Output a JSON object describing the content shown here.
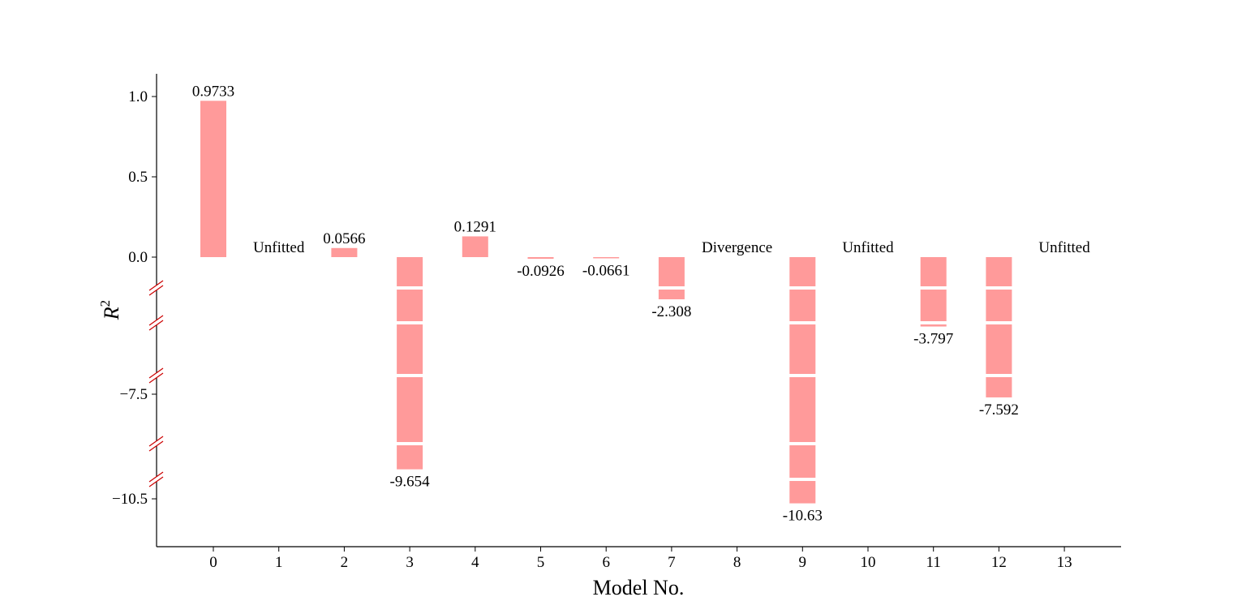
{
  "chart_data": {
    "type": "bar",
    "title": "",
    "xlabel": "Model No.",
    "ylabel": {
      "base": "R",
      "superscript": "2"
    },
    "colors": {
      "bar": "#ff9a9a",
      "break_mark": "#cc0000",
      "axis": "#000000"
    },
    "legend": "none",
    "grid": false,
    "categories": [
      "0",
      "1",
      "2",
      "3",
      "4",
      "5",
      "6",
      "7",
      "8",
      "9",
      "10",
      "11",
      "12",
      "13"
    ],
    "values": [
      0.9733,
      null,
      0.0566,
      -9.654,
      0.1291,
      -0.0926,
      -0.0661,
      -2.308,
      null,
      -10.63,
      null,
      -3.797,
      -7.592,
      null
    ],
    "value_labels": [
      "0.9733",
      "Unfitted",
      "0.0566",
      "-9.654",
      "0.1291",
      "-0.0926",
      "-0.0661",
      "-2.308",
      "Divergence",
      "-10.63",
      "Unfitted",
      "-3.797",
      "-7.592",
      "Unfitted"
    ],
    "y_ticks": [
      {
        "value": 1.0,
        "label": "1.0"
      },
      {
        "value": 0.5,
        "label": "0.5"
      },
      {
        "value": 0.0,
        "label": "0.0"
      },
      {
        "value": -7.5,
        "label": "−7.5"
      },
      {
        "value": -10.5,
        "label": "−10.5"
      }
    ],
    "y_axis_breaks": true
  }
}
